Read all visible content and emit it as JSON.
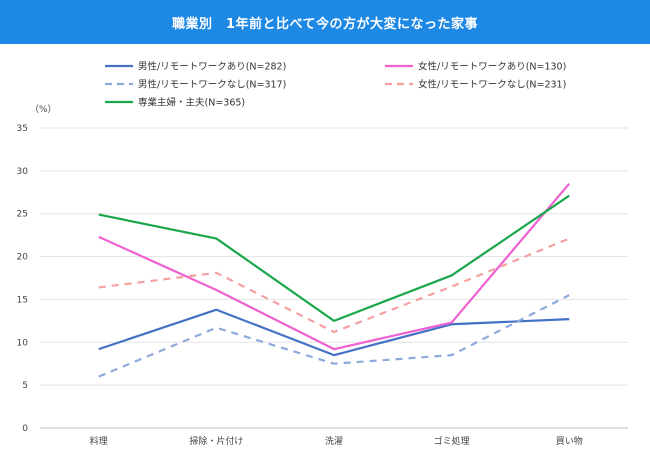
{
  "header": {
    "title": "職業別　1年前と比べて今の方が大変になった家事",
    "color": "#1e88e5"
  },
  "chart_data": {
    "type": "line",
    "title": "職業別　1年前と比べて今の方が大変になった家事",
    "ylabel": "（%）",
    "ylim": [
      0,
      35
    ],
    "yticks": [
      0,
      5,
      10,
      15,
      20,
      25,
      30,
      35
    ],
    "grid": true,
    "legend_placement": "top",
    "categories": [
      "料理",
      "掃除・片付け",
      "洗濯",
      "ゴミ処理",
      "買い物"
    ],
    "series": [
      {
        "name": "男性/リモートワークあり(N=282)",
        "values": [
          9.2,
          13.8,
          8.5,
          12.1,
          12.7
        ],
        "color": "#4472c4",
        "dash": false
      },
      {
        "name": "女性/リモートワークあり(N=130)",
        "values": [
          22.3,
          16.1,
          9.2,
          12.3,
          28.5
        ],
        "color": "#f060d0",
        "dash": false
      },
      {
        "name": "男性/リモートワークなし(N=317)",
        "values": [
          6.0,
          11.7,
          7.5,
          8.5,
          15.5
        ],
        "color": "#8eaadb",
        "dash": true
      },
      {
        "name": "女性/リモートワークなし(N=231)",
        "values": [
          16.4,
          18.1,
          11.2,
          16.5,
          22.1
        ],
        "color": "#f4a0a0",
        "dash": true
      },
      {
        "name": "専業主婦・主夫(N=365)",
        "values": [
          24.9,
          22.1,
          12.5,
          17.8,
          27.1
        ],
        "color": "#1aa64a",
        "dash": false
      }
    ]
  }
}
